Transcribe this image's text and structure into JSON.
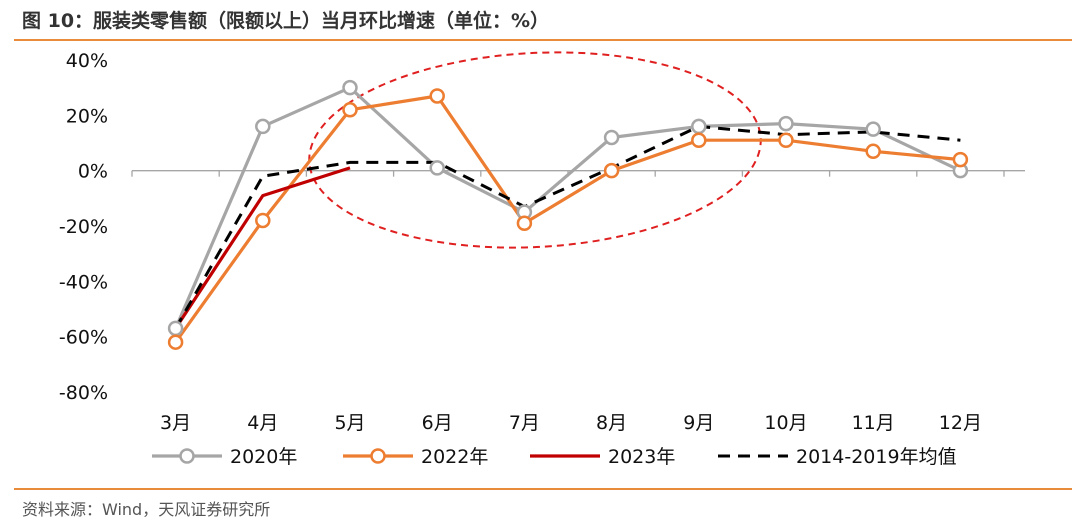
{
  "header": {
    "title": "图 10：服装类零售额（限额以上）当月环比增速（单位：%）"
  },
  "footer": {
    "source": "资料来源：Wind，天风证券研究所"
  },
  "chart_data": {
    "type": "line",
    "categories": [
      "3月",
      "4月",
      "5月",
      "6月",
      "7月",
      "8月",
      "9月",
      "10月",
      "11月",
      "12月"
    ],
    "ylim": [
      -80,
      40
    ],
    "yticks": [
      "40%",
      "20%",
      "0%",
      "-20%",
      "-40%",
      "-60%",
      "-80%"
    ],
    "ytick_values": [
      40,
      20,
      0,
      -20,
      -40,
      -60,
      -80
    ],
    "legend_position": "bottom",
    "grid": false,
    "series": [
      {
        "name": "2020年",
        "color": "#a6a6a6",
        "style": "solid-marker",
        "values": [
          -57,
          16,
          30,
          1,
          -15,
          12,
          16,
          17,
          15,
          0
        ]
      },
      {
        "name": "2022年",
        "color": "#ed7d31",
        "style": "solid-marker",
        "values": [
          -62,
          -18,
          22,
          27,
          -19,
          0,
          11,
          11,
          7,
          4
        ]
      },
      {
        "name": "2023年",
        "color": "#c00000",
        "style": "solid",
        "values": [
          -57,
          -9,
          1,
          null,
          null,
          null,
          null,
          null,
          null,
          null
        ]
      },
      {
        "name": "2014-2019年均值",
        "color": "#000000",
        "style": "dashed",
        "values": [
          -57,
          -2,
          3,
          3,
          -13,
          1,
          16,
          13,
          14,
          11
        ]
      }
    ]
  }
}
